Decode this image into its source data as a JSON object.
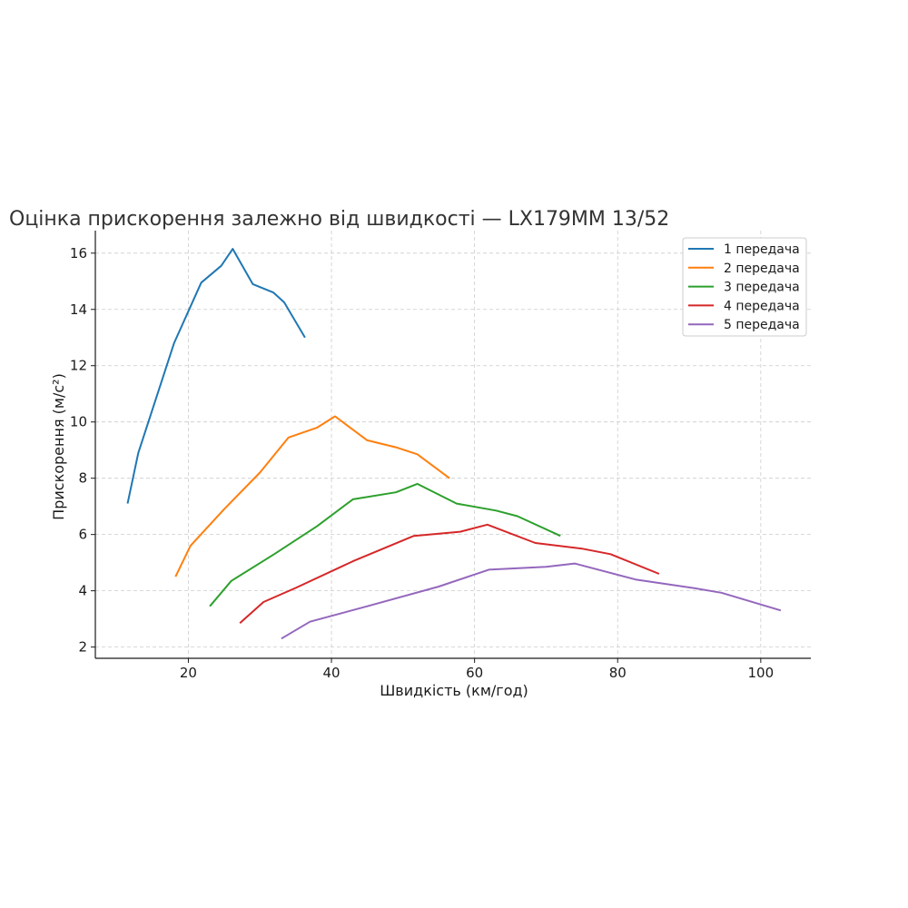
{
  "chart_data": {
    "type": "line",
    "title": "Оцінка прискорення залежно від швидкості — LX179MM  13/52",
    "xlabel": "Швидкість (км/год)",
    "ylabel": "Прискорення (м/с²)",
    "xlim": [
      7,
      107
    ],
    "ylim": [
      1.6,
      16.8
    ],
    "xticks": [
      20,
      40,
      60,
      80,
      100
    ],
    "yticks": [
      2,
      4,
      6,
      8,
      10,
      12,
      14,
      16
    ],
    "grid": true,
    "legend_position": "top-right",
    "series": [
      {
        "name": "1 передача",
        "color": "#1f77b4",
        "x": [
          11.5,
          13.0,
          18.0,
          21.8,
          24.6,
          26.2,
          29.0,
          31.9,
          33.4,
          36.3
        ],
        "y": [
          7.1,
          8.9,
          12.8,
          14.95,
          15.55,
          16.15,
          14.9,
          14.6,
          14.25,
          13.0
        ]
      },
      {
        "name": "2 передача",
        "color": "#ff7f0e",
        "x": [
          18.2,
          20.3,
          25.0,
          30.0,
          34.0,
          38.0,
          40.5,
          45.0,
          49.0,
          52.0,
          56.5
        ],
        "y": [
          4.5,
          5.6,
          6.9,
          8.2,
          9.45,
          9.8,
          10.2,
          9.35,
          9.1,
          8.85,
          8.0
        ]
      },
      {
        "name": "3 передача",
        "color": "#2ca02c",
        "x": [
          23.0,
          26.0,
          32.0,
          38.0,
          43.0,
          49.0,
          52.0,
          57.5,
          63.0,
          66.0,
          72.0
        ],
        "y": [
          3.45,
          4.35,
          5.3,
          6.3,
          7.25,
          7.5,
          7.8,
          7.1,
          6.85,
          6.65,
          5.95
        ]
      },
      {
        "name": "4 передача",
        "color": "#d62728",
        "x": [
          27.2,
          30.5,
          35.0,
          43.0,
          51.5,
          58.0,
          61.8,
          68.5,
          75.0,
          79.0,
          85.8
        ],
        "y": [
          2.85,
          3.6,
          4.1,
          5.05,
          5.95,
          6.1,
          6.35,
          5.7,
          5.5,
          5.3,
          4.6
        ]
      },
      {
        "name": "5 передача",
        "color": "#9467bd",
        "x": [
          33.0,
          37.0,
          45.0,
          55.0,
          62.0,
          70.0,
          74.0,
          82.5,
          90.5,
          94.5,
          102.8
        ],
        "y": [
          2.3,
          2.9,
          3.45,
          4.15,
          4.75,
          4.85,
          4.97,
          4.4,
          4.1,
          3.93,
          3.3
        ]
      }
    ]
  }
}
